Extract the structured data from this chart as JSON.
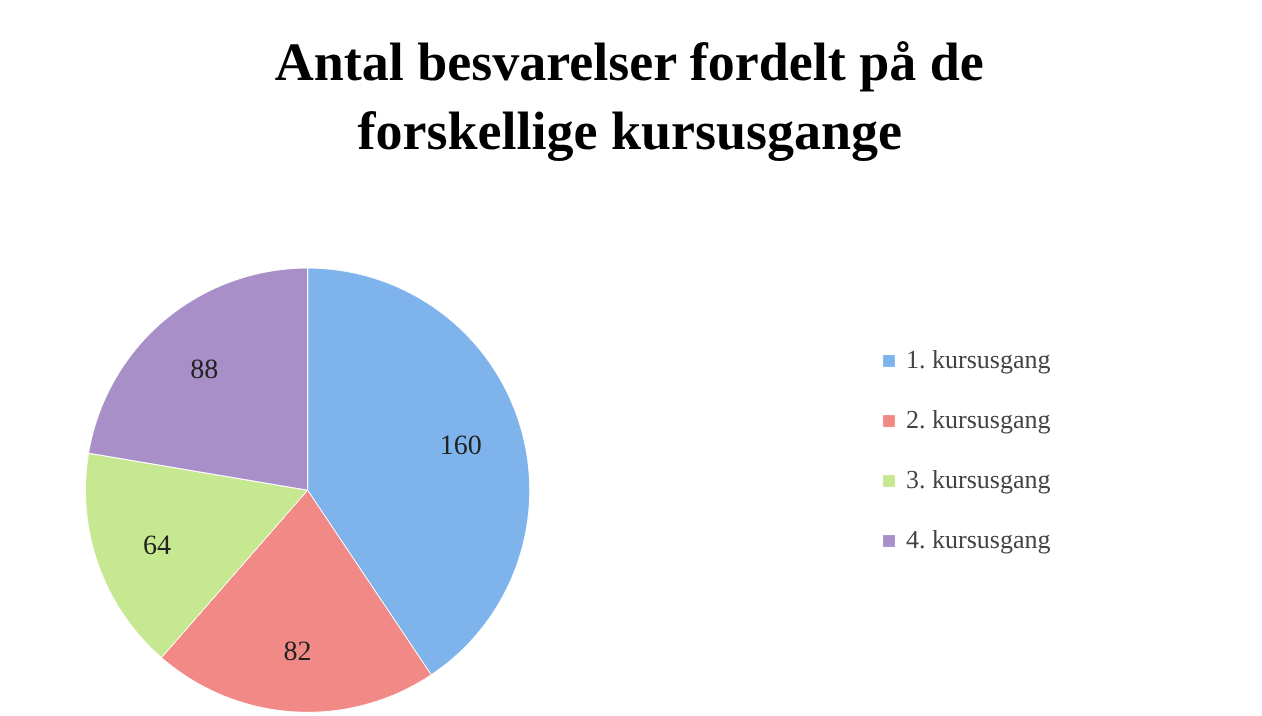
{
  "chart_data": {
    "type": "pie",
    "title": "Antal besvarelser fordelt på de forskellige kursusgange",
    "categories": [
      "1. kursusgang",
      "2. kursusgang",
      "3. kursusgang",
      "4. kursusgang"
    ],
    "values": [
      160,
      82,
      64,
      88
    ],
    "colors": [
      "#7fb3ec",
      "#f18a87",
      "#c6e890",
      "#a88fc8"
    ],
    "data_labels": true,
    "legend": "right"
  }
}
